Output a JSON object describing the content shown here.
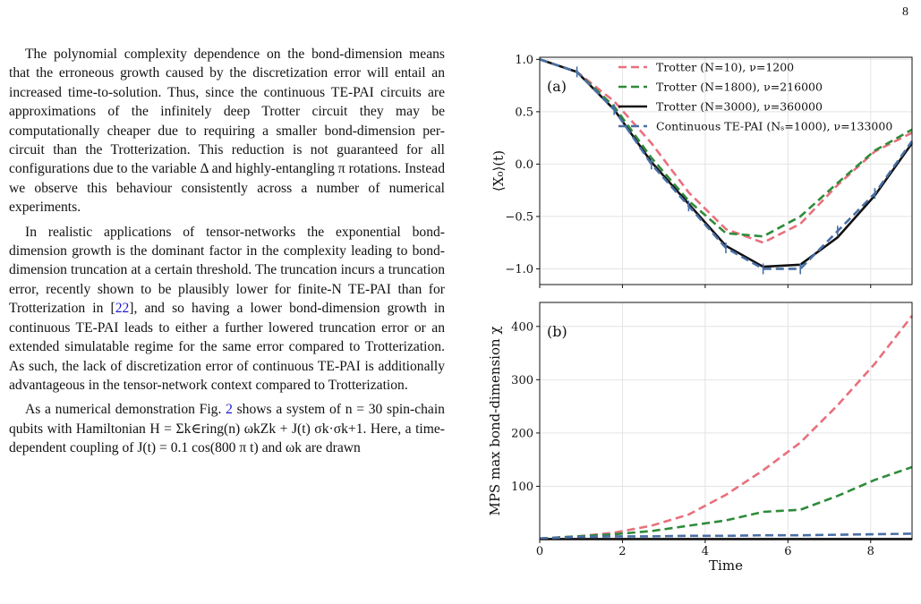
{
  "page_number": "8",
  "text": {
    "p1": "The polynomial complexity dependence on the bond-dimension means that the erroneous growth caused by the discretization error will entail an increased time-to-solution. Thus, since the continuous TE-PAI circuits are approximations of the infinitely deep Trotter circuit they may be computationally cheaper due to requiring a smaller bond-dimension per-circuit than the Trotterization. This reduction is not guaranteed for all configurations due to the variable Δ and highly-entangling π rotations. Instead we observe this behaviour consistently across a number of numerical experiments.",
    "p2a": "In realistic applications of tensor-networks the exponential bond-dimension growth is the dominant factor in the complexity leading to bond-dimension truncation at a certain threshold. The truncation incurs a truncation error, recently shown to be plausibly lower for finite-N TE-PAI than for Trotterization in [",
    "p2ref": "22",
    "p2b": "], and so having a lower bond-dimension growth in continuous TE-PAI leads to either a further lowered truncation error or an extended simulatable regime for the same error compared to Trotterization. As such, the lack of discretization error of continuous TE-PAI is additionally advantageous in the tensor-network context compared to Trotterization.",
    "p3a": "As a numerical demonstration Fig. ",
    "p3ref": "2",
    "p3b": " shows a system of n = 30 spin-chain qubits with Hamiltonian H = Σk∈ring(n) ωkZk + J(t) σk·σk+1. Here, a time-dependent coupling of J(t) = 0.1 cos(800 π t) and ωk are drawn"
  },
  "chart_data": [
    {
      "type": "line",
      "panel_label": "(a)",
      "ylabel": "⟨X₀⟩(t)",
      "xlim": [
        0,
        9
      ],
      "ylim": [
        -1.15,
        1.02
      ],
      "yticks": [
        1.0,
        0.5,
        0.0,
        -0.5,
        -1.0
      ],
      "ytick_labels": [
        "1.0",
        "0.5",
        "0.0",
        "−0.5",
        "−1.0"
      ],
      "grid": true,
      "legend_position": "top-right",
      "x": [
        0,
        0.9,
        1.8,
        2.7,
        3.6,
        4.5,
        5.4,
        6.3,
        7.2,
        8.1,
        9.0
      ],
      "series": [
        {
          "name": "Trotter (N=10), ν=1200",
          "color": "#e8707c",
          "style": "dashed",
          "values": [
            1.0,
            0.88,
            0.6,
            0.2,
            -0.27,
            -0.62,
            -0.75,
            -0.57,
            -0.2,
            0.12,
            0.3
          ]
        },
        {
          "name": "Trotter (N=1800), ν=216000",
          "color": "#2e8b3a",
          "style": "dashed",
          "values": [
            1.0,
            0.88,
            0.55,
            0.06,
            -0.35,
            -0.66,
            -0.69,
            -0.5,
            -0.18,
            0.13,
            0.33
          ]
        },
        {
          "name": "Trotter (N=3000), ν=360000",
          "color": "#111111",
          "style": "solid",
          "values": [
            1.0,
            0.88,
            0.52,
            0.02,
            -0.38,
            -0.78,
            -0.98,
            -0.96,
            -0.7,
            -0.3,
            0.2
          ]
        },
        {
          "name": "Continuous TE-PAI (Nₛ=1000), ν=133000",
          "color": "#4a6fa5",
          "style": "dashed",
          "values": [
            1.0,
            0.88,
            0.52,
            0.0,
            -0.4,
            -0.8,
            -1.0,
            -1.0,
            -0.64,
            -0.28,
            0.22
          ]
        }
      ]
    },
    {
      "type": "line",
      "panel_label": "(b)",
      "xlabel": "Time",
      "ylabel": "MPS max bond-dimension χ",
      "xlim": [
        0,
        9
      ],
      "ylim": [
        0,
        445
      ],
      "xticks": [
        0,
        2,
        4,
        6,
        8
      ],
      "yticks": [
        100,
        200,
        300,
        400
      ],
      "grid": true,
      "x": [
        0,
        0.9,
        1.8,
        2.7,
        3.6,
        4.5,
        5.4,
        6.3,
        7.2,
        8.1,
        9.0
      ],
      "series": [
        {
          "name": "Trotter (N=10), ν=1200",
          "color": "#e8707c",
          "style": "dashed",
          "values": [
            2,
            6,
            13,
            26,
            47,
            84,
            130,
            182,
            252,
            330,
            420
          ]
        },
        {
          "name": "Trotter (N=1800), ν=216000",
          "color": "#2e8b3a",
          "style": "dashed",
          "values": [
            2,
            6,
            10,
            16,
            26,
            36,
            52,
            56,
            82,
            112,
            136
          ]
        },
        {
          "name": "Trotter (N=3000), ν=360000",
          "color": "#111111",
          "style": "solid",
          "values": [
            1,
            1,
            1,
            1,
            1,
            1,
            1,
            1,
            1,
            1,
            1
          ]
        },
        {
          "name": "Continuous TE-PAI (Nₛ=1000), ν=133000",
          "color": "#4a6fa5",
          "style": "dashed",
          "values": [
            2,
            5,
            6,
            6,
            7,
            7,
            8,
            8,
            9,
            10,
            11
          ]
        }
      ]
    }
  ]
}
